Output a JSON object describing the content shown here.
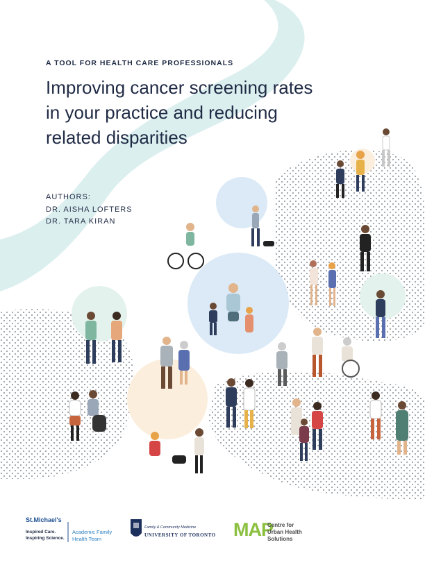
{
  "cover": {
    "kicker": "A TOOL FOR HEALTH CARE PROFESSIONALS",
    "title_lines": [
      "Improving cancer screening rates",
      "in your practice and reducing",
      "related disparities"
    ],
    "authors_label": "AUTHORS:",
    "authors": [
      "DR. AISHA LOFTERS",
      "DR. TARA KIRAN"
    ]
  },
  "footer": {
    "stmichaels": {
      "name": "St.Michael's",
      "tagline_1": "Inspired Care.",
      "tagline_2": "Inspiring Science."
    },
    "academic_team": {
      "line_1": "Academic Family",
      "line_2": "Health Team"
    },
    "uoft": {
      "line_1": "Family & Community Medicine",
      "line_2": "UNIVERSITY OF TORONTO"
    },
    "map": {
      "acronym": "MAP",
      "line_1": "Centre for",
      "line_2": "Urban Health",
      "line_3": "Solutions"
    }
  },
  "colors": {
    "navy": "#1f2a44",
    "teal_wave": "#dcefef",
    "light_blue": "#dbeaf6",
    "peach": "#fbeedd",
    "mint": "#e3f2ec",
    "stmichaels_blue": "#1d4f91",
    "map_green": "#8bbf3f"
  }
}
